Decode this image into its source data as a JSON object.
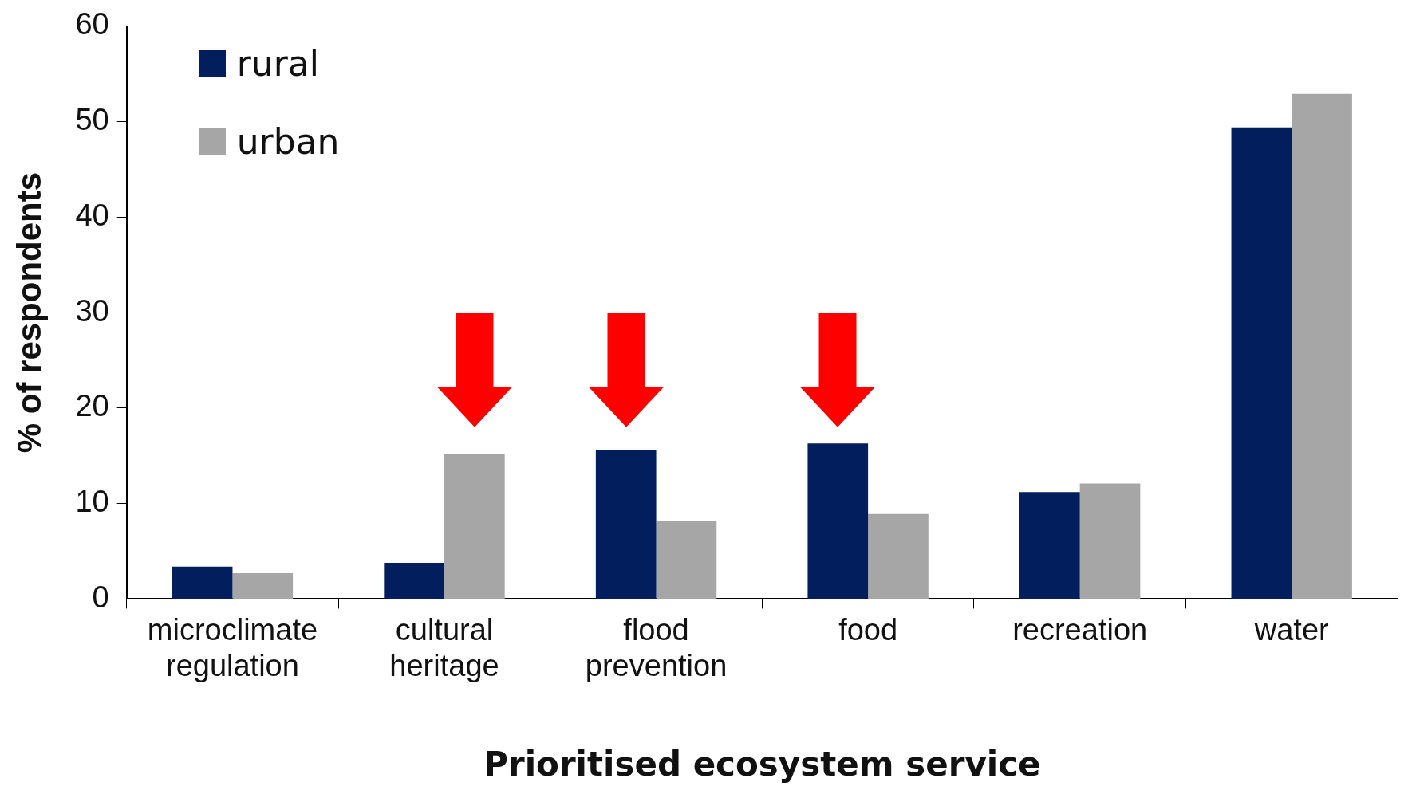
{
  "chart_data": {
    "type": "bar",
    "xlabel": "Prioritised ecosystem service",
    "ylabel": "% of respondents",
    "categories": [
      "microclimate regulation",
      "cultural heritage",
      "flood prevention",
      "food",
      "recreation",
      "water"
    ],
    "series": [
      {
        "name": "rural",
        "color": "#021e5c",
        "values": [
          3.4,
          3.8,
          15.6,
          16.3,
          11.2,
          49.4
        ]
      },
      {
        "name": "urban",
        "color": "#a6a6a6",
        "values": [
          2.7,
          15.2,
          8.2,
          8.9,
          12.1,
          52.9
        ]
      }
    ],
    "ylim": [
      0,
      60
    ],
    "yticks": [
      0,
      10,
      20,
      30,
      40,
      50,
      60
    ],
    "grid": false,
    "legend": "top left"
  }
}
